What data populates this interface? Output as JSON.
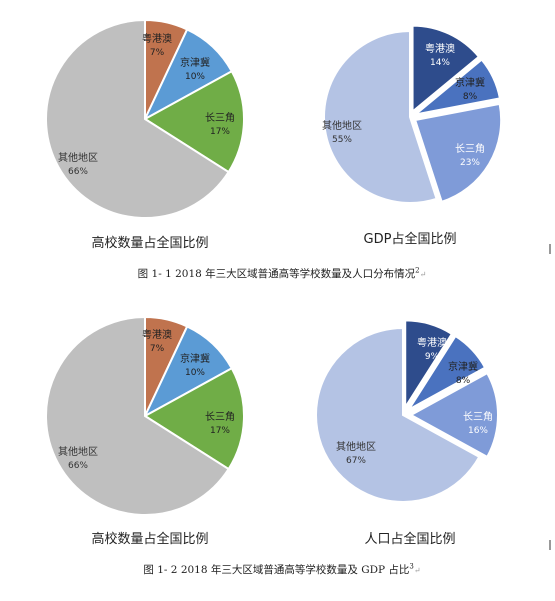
{
  "chart_data": [
    {
      "type": "pie",
      "title": "高校数量占全国比例",
      "slices": [
        {
          "label": "粤港澳",
          "value": 7,
          "pct": "7%",
          "color": "#c0734e",
          "exploded": false
        },
        {
          "label": "京津冀",
          "value": 10,
          "pct": "10%",
          "color": "#5b9bd5",
          "exploded": false
        },
        {
          "label": "长三角",
          "value": 17,
          "pct": "17%",
          "color": "#70ad47",
          "exploded": false
        },
        {
          "label": "其他地区",
          "value": 66,
          "pct": "66%",
          "color": "#bfbfbf",
          "exploded": false
        }
      ]
    },
    {
      "type": "pie",
      "title": "GDP占全国比例",
      "slices": [
        {
          "label": "粤港澳",
          "value": 14,
          "pct": "14%",
          "color": "#2e4c8c",
          "exploded": true
        },
        {
          "label": "京津冀",
          "value": 8,
          "pct": "8%",
          "color": "#4a72bf",
          "exploded": true
        },
        {
          "label": "长三角",
          "value": 23,
          "pct": "23%",
          "color": "#7f9bd8",
          "exploded": true
        },
        {
          "label": "其他地区",
          "value": 55,
          "pct": "55%",
          "color": "#b4c3e4",
          "exploded": false
        }
      ]
    },
    {
      "type": "pie",
      "title": "高校数量占全国比例",
      "slices": [
        {
          "label": "粤港澳",
          "value": 7,
          "pct": "7%",
          "color": "#c0734e",
          "exploded": false
        },
        {
          "label": "京津冀",
          "value": 10,
          "pct": "10%",
          "color": "#5b9bd5",
          "exploded": false
        },
        {
          "label": "长三角",
          "value": 17,
          "pct": "17%",
          "color": "#70ad47",
          "exploded": false
        },
        {
          "label": "其他地区",
          "value": 66,
          "pct": "66%",
          "color": "#bfbfbf",
          "exploded": false
        }
      ]
    },
    {
      "type": "pie",
      "title": "人口占全国比例",
      "slices": [
        {
          "label": "粤港澳",
          "value": 9,
          "pct": "9%",
          "color": "#2e4c8c",
          "exploded": true
        },
        {
          "label": "京津冀",
          "value": 8,
          "pct": "8%",
          "color": "#4a72bf",
          "exploded": true
        },
        {
          "label": "长三角",
          "value": 16,
          "pct": "16%",
          "color": "#7f9bd8",
          "exploded": true
        },
        {
          "label": "其他地区",
          "value": 67,
          "pct": "67%",
          "color": "#b4c3e4",
          "exploded": false
        }
      ]
    }
  ],
  "captions": [
    {
      "text": "图 1- 1 2018 年三大区域普通高等学校数量及人口分布情况",
      "sup": "2",
      "mark": "↵"
    },
    {
      "text": "图 1- 2 2018 年三大区域普通高等学校数量及 GDP 占比",
      "sup": "3",
      "mark": "↵"
    }
  ]
}
